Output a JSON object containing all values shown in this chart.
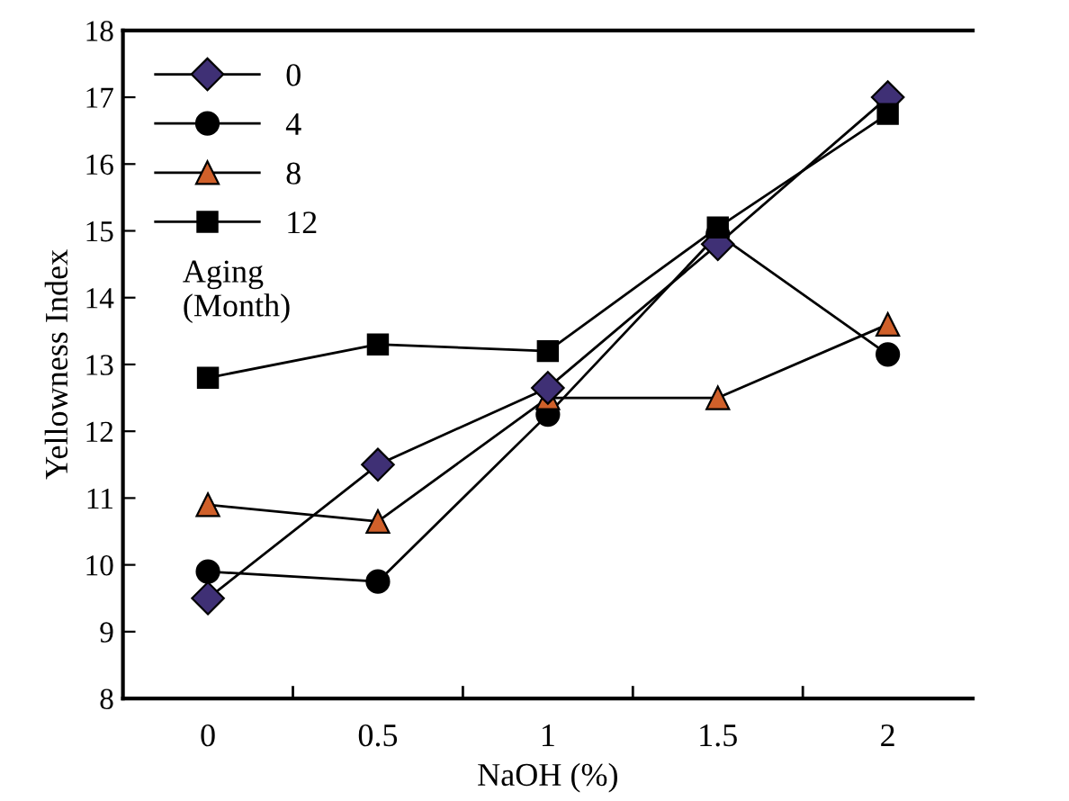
{
  "chart_data": {
    "type": "line",
    "xlabel": "NaOH (%)",
    "ylabel": "Yellowness Index",
    "legend_title": "Aging\n(Month)",
    "categories": [
      "0",
      "0.5",
      "1",
      "1.5",
      "2"
    ],
    "series": [
      {
        "name": "0",
        "color": "#3f3075",
        "marker": "diamond",
        "values": [
          9.5,
          11.5,
          12.65,
          14.8,
          17.0
        ]
      },
      {
        "name": "4",
        "color": "#000000",
        "marker": "circle",
        "values": [
          9.9,
          9.75,
          12.25,
          14.95,
          13.15
        ]
      },
      {
        "name": "8",
        "color": "#d0602a",
        "marker": "triangle",
        "values": [
          10.9,
          10.65,
          12.5,
          12.5,
          13.6
        ]
      },
      {
        "name": "12",
        "color": "#000000",
        "marker": "square",
        "values": [
          12.8,
          13.3,
          13.2,
          15.05,
          16.75
        ]
      }
    ],
    "ylim": [
      8,
      18
    ],
    "yticks": [
      8,
      9,
      10,
      11,
      12,
      13,
      14,
      15,
      16,
      17,
      18
    ],
    "grid": false,
    "legend": "top left",
    "line_style": "solid"
  }
}
